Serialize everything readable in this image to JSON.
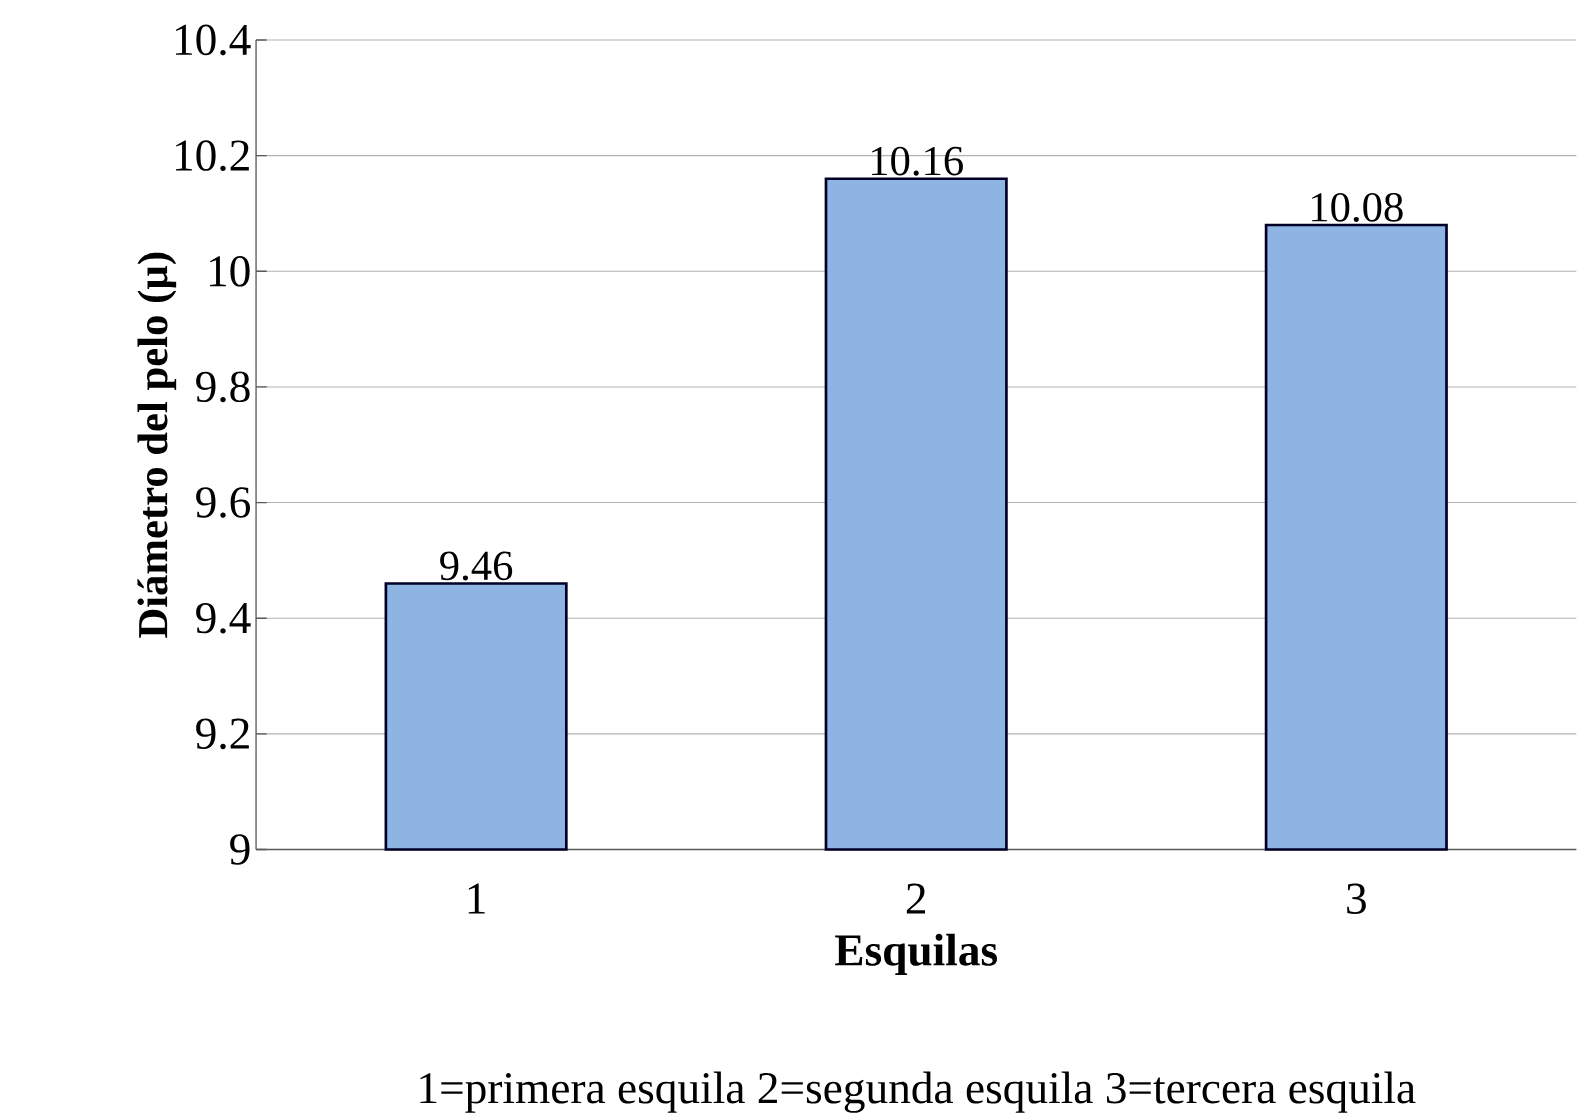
{
  "chart_data": {
    "type": "bar",
    "categories": [
      "1",
      "2",
      "3"
    ],
    "values": [
      9.46,
      10.16,
      10.08
    ],
    "color": "#8db4e2",
    "ylim": [
      9,
      10.4
    ],
    "yticks": [
      9,
      9.2,
      9.4,
      9.6,
      9.8,
      10,
      10.2,
      10.4
    ],
    "grid": "y",
    "data_labels": true,
    "xlabel": "Esquilas",
    "ylabel": "Diámetro del pelo (µ)",
    "annotations": [
      "1=primera esquila  2=segunda esquila  3=tercera esquila"
    ]
  }
}
